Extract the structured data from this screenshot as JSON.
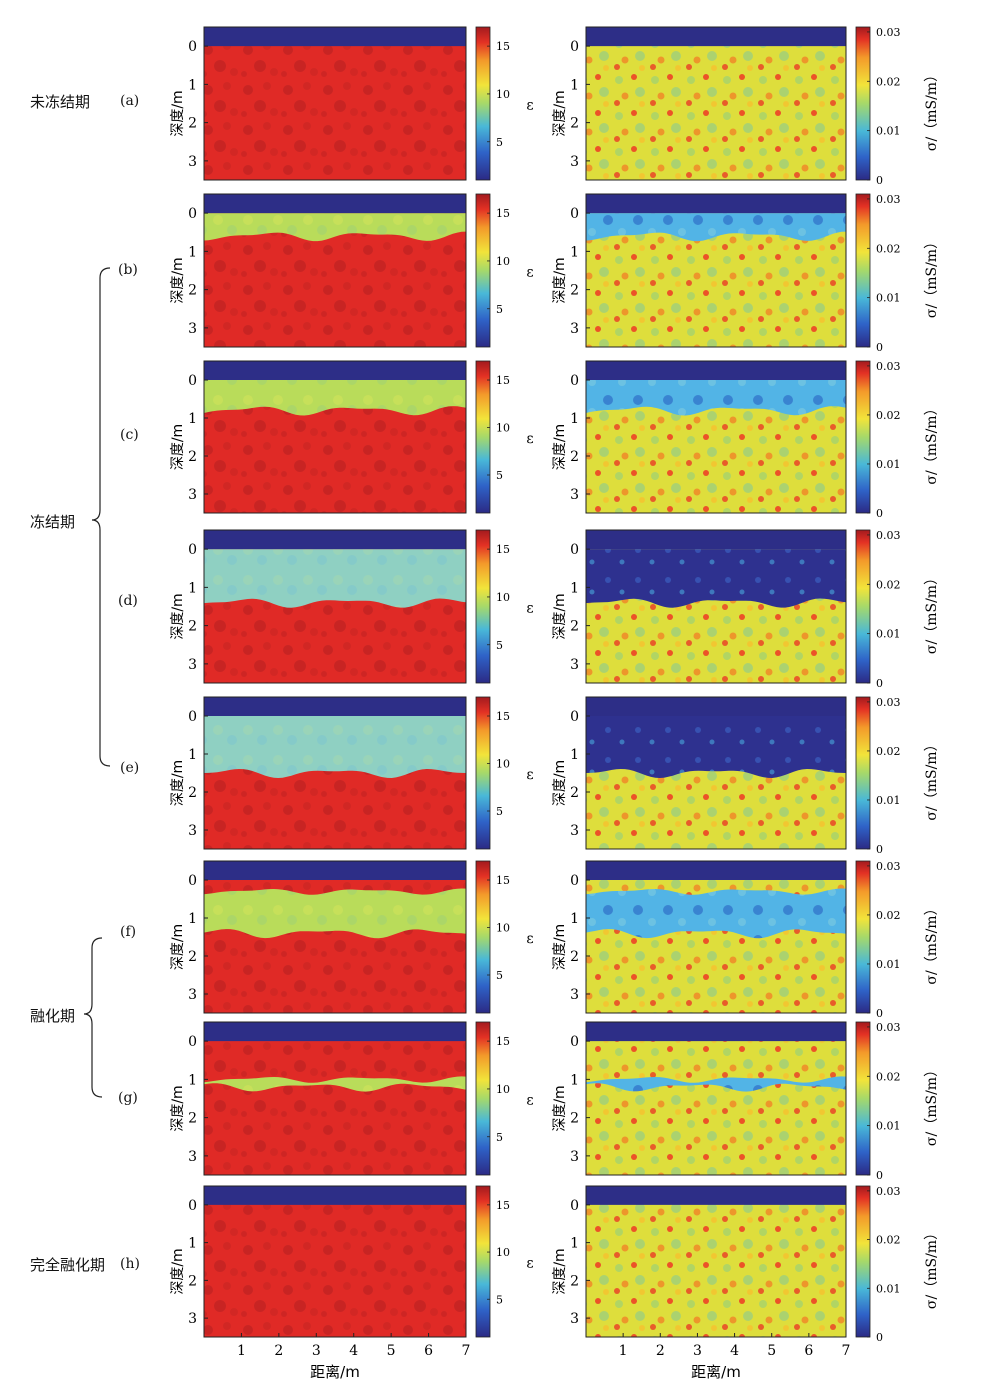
{
  "stages": [
    {
      "id": "unfrozen",
      "label": "未冻结期"
    },
    {
      "id": "frozen",
      "label": "冻结期"
    },
    {
      "id": "thaw",
      "label": "融化期"
    },
    {
      "id": "full_thaw",
      "label": "完全融化期"
    }
  ],
  "panel_labels": [
    "(a)",
    "(b)",
    "(c)",
    "(d)",
    "(e)",
    "(f)",
    "(g)",
    "(h)"
  ],
  "axis": {
    "ylabel": "深度/m",
    "xlabel": "距离/m",
    "yticks": [
      "0",
      "1",
      "2",
      "3"
    ],
    "xticks": [
      "1",
      "2",
      "3",
      "4",
      "5",
      "6",
      "7"
    ]
  },
  "colorbar_eps": {
    "label": "ε",
    "ticks": [
      "15",
      "10",
      "5"
    ],
    "range": [
      1,
      17
    ]
  },
  "colorbar_sigma": {
    "label": "σ/（mS/m）",
    "ticks": [
      "0.03",
      "0.02",
      "0.01",
      "0"
    ],
    "range": [
      0,
      0.031
    ]
  },
  "colors": {
    "air": "#2d2e87",
    "eps_soil": "#e02a26",
    "eps_frozen": "#b9dc5a",
    "eps_frozen_deep": "#8fd0c2",
    "sigma_soil": "#dede3c",
    "sigma_frozen": "#52b4e6",
    "sigma_frozen_deep": "#2e318f"
  },
  "chart_data": {
    "type": "heatmap",
    "x_range_m": [
      0,
      7
    ],
    "depth_range_m": [
      -0.5,
      3.5
    ],
    "air_layer_depth_m": [
      -0.5,
      0
    ],
    "panels": [
      {
        "label": "(a)",
        "stage": "未冻结期",
        "frozen_layer": null
      },
      {
        "label": "(b)",
        "stage": "冻结期",
        "frozen_layer": {
          "top_m": 0,
          "bottom_m": 0.6
        }
      },
      {
        "label": "(c)",
        "stage": "冻结期",
        "frozen_layer": {
          "top_m": 0,
          "bottom_m": 0.8
        }
      },
      {
        "label": "(d)",
        "stage": "冻结期",
        "frozen_layer": {
          "top_m": 0,
          "bottom_m": 1.4
        }
      },
      {
        "label": "(e)",
        "stage": "冻结期",
        "frozen_layer": {
          "top_m": 0,
          "bottom_m": 1.5
        }
      },
      {
        "label": "(f)",
        "stage": "融化期",
        "frozen_layer": {
          "top_m": 0.3,
          "bottom_m": 1.4
        }
      },
      {
        "label": "(g)",
        "stage": "融化期",
        "frozen_layer": {
          "top_m": 1.0,
          "bottom_m": 1.2
        }
      },
      {
        "label": "(h)",
        "stage": "完全融化期",
        "frozen_layer": null
      }
    ]
  }
}
